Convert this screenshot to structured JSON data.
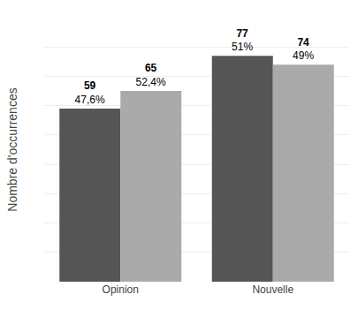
{
  "chart_data": {
    "type": "bar",
    "categories": [
      "Opinion",
      "Nouvelle"
    ],
    "series": [
      {
        "color": "#555555",
        "values": [
          59,
          77
        ],
        "percent_labels": [
          "47,6%",
          "51%"
        ]
      },
      {
        "color": "#aaaaaa",
        "values": [
          65,
          74
        ],
        "percent_labels": [
          "52,4%",
          "49%"
        ]
      }
    ],
    "ylabel": "Nombre d'occurrences",
    "ylim": [
      0,
      90
    ],
    "yticks": [
      0,
      10,
      20,
      30,
      40,
      50,
      60,
      70,
      80,
      90
    ],
    "grid": true,
    "data_labels": true,
    "tick_labels": "x"
  }
}
